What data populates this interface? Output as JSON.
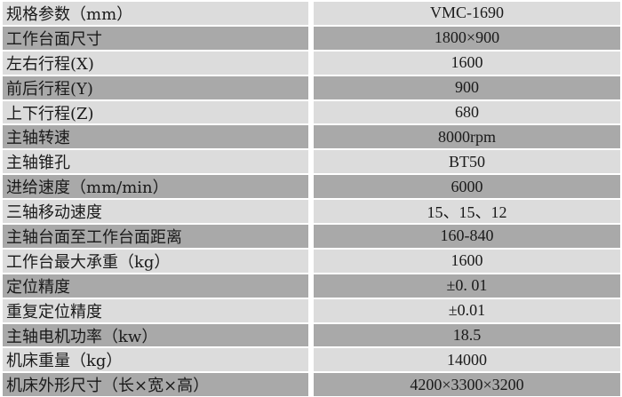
{
  "colors": {
    "light_row": "#dcdcdc",
    "dark_row": "#a9a9a9",
    "border": "#ffffff"
  },
  "rows": [
    {
      "label": "规格参数（mm）",
      "value": "VMC-1690"
    },
    {
      "label": "工作台面尺寸",
      "value": "1800×900"
    },
    {
      "label": "左右行程(X)",
      "value": "1600"
    },
    {
      "label": "前后行程(Y)",
      "value": "900"
    },
    {
      "label": "上下行程(Z)",
      "value": "680"
    },
    {
      "label": "主轴转速",
      "value": "8000rpm"
    },
    {
      "label": "主轴锥孔",
      "value": "BT50"
    },
    {
      "label": "进给速度（mm/min）",
      "value": "6000"
    },
    {
      "label": "三轴移动速度",
      "value": "15、15、12"
    },
    {
      "label": "主轴台面至工作台面距离",
      "value": "160-840"
    },
    {
      "label": "工作台最大承重（kg）",
      "value": "1600"
    },
    {
      "label": "定位精度",
      "value": "±0. 01"
    },
    {
      "label": "重复定位精度",
      "value": "±0.01"
    },
    {
      "label": "主轴电机功率（kw）",
      "value": "18.5"
    },
    {
      "label": "机床重量（kg）",
      "value": "14000"
    },
    {
      "label": "机床外形尺寸（长×宽×高）",
      "value": "4200×3300×3200"
    }
  ]
}
